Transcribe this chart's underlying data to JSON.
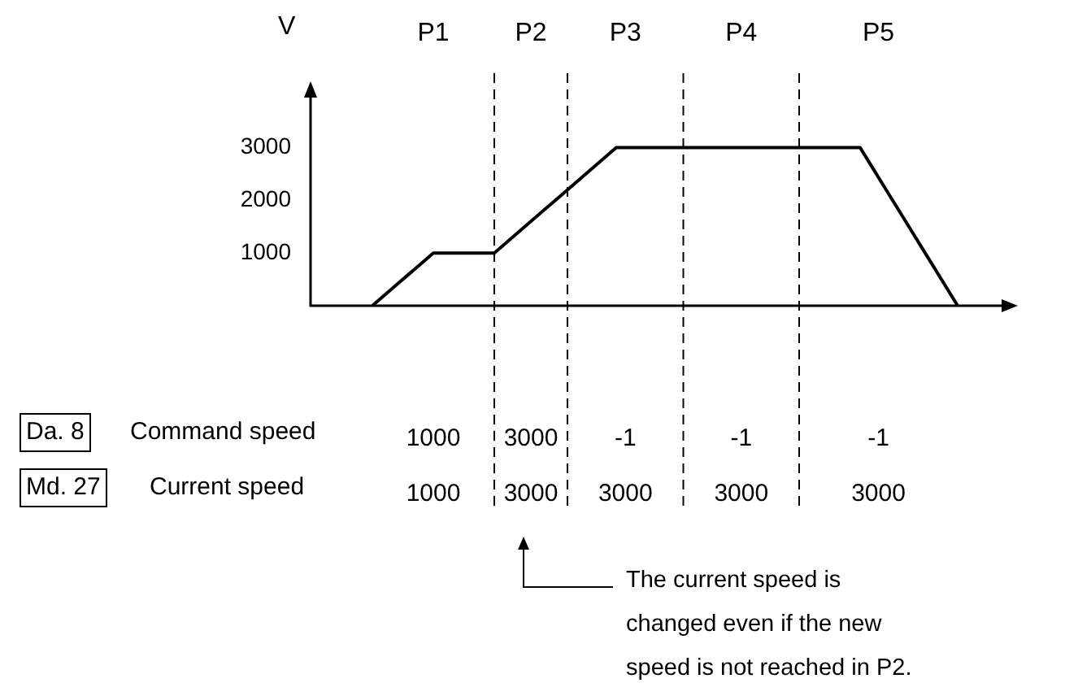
{
  "chart_data": {
    "type": "line",
    "ylabel": "V",
    "categories": [
      null,
      null,
      null,
      null,
      null,
      null,
      null,
      null,
      null,
      null,
      null,
      null,
      null,
      null,
      null,
      null,
      null,
      null,
      null,
      null,
      null,
      null,
      null,
      null,
      null,
      null,
      null,
      null,
      null,
      null,
      null,
      null,
      null,
      null,
      null,
      null,
      null,
      null,
      null,
      null,
      null,
      null,
      null,
      null,
      null,
      null,
      null,
      null,
      null
    ],
    "series": [
      {
        "color": "#000000",
        "values": [
          0,
          200,
          400,
          600,
          800,
          1000,
          1000,
          1000,
          1000,
          1000,
          1000,
          1200,
          1400,
          1600,
          1800,
          2000,
          2200,
          2400,
          2600,
          2800,
          3000,
          3000,
          3000,
          3000,
          3000,
          3000,
          3000,
          3000,
          3000,
          3000,
          3000,
          3000,
          3000,
          3000,
          3000,
          3000,
          3000,
          3000,
          3000,
          3000,
          3000,
          2625,
          2250,
          1875,
          1500,
          1125,
          750,
          375,
          0
        ]
      }
    ],
    "grid": "x",
    "ylim": [
      0,
      4000
    ],
    "yticks": [
      1000,
      2000,
      3000
    ],
    "tick_labels": "y",
    "marker": "none",
    "line_style": "solid",
    "annotations": [
      "P1",
      "P2",
      "P3",
      "P4",
      "P5",
      "Da. 8",
      "Command speed",
      "1000",
      "3000",
      "-1",
      "-1",
      "-1",
      "Md. 27",
      "Current speed",
      "1000",
      "3000",
      "3000",
      "3000",
      "3000",
      "The current speed is changed even if the new speed is not reached in P2."
    ]
  }
}
